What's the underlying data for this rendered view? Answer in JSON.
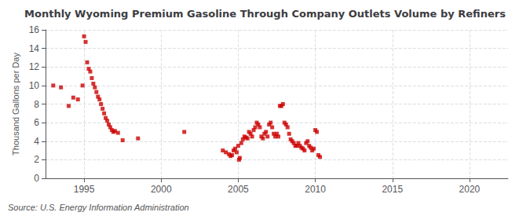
{
  "chart_data": {
    "type": "scatter",
    "title": "Monthly Wyoming Premium Gasoline Through Company Outlets Volume by Refiners",
    "ylabel": "Thousand Gallons per Day",
    "annotation": "Source: U.S. Energy Information Administration",
    "color": "#cc0000",
    "marker": "square",
    "grid": true,
    "xlim": [
      1992.5,
      2022.5
    ],
    "xticks": [
      1995,
      2000,
      2005,
      2010,
      2015,
      2020
    ],
    "ylim": [
      0,
      16
    ],
    "yticks": [
      0,
      2,
      4,
      6,
      8,
      10,
      12,
      14,
      16
    ],
    "x": [
      1993.0,
      1993.5,
      1994.0,
      1994.3,
      1994.6,
      1994.9,
      1995.0,
      1995.1,
      1995.2,
      1995.3,
      1995.4,
      1995.5,
      1995.6,
      1995.7,
      1995.8,
      1995.9,
      1996.0,
      1996.1,
      1996.2,
      1996.3,
      1996.4,
      1996.5,
      1996.6,
      1996.7,
      1996.8,
      1996.9,
      1997.0,
      1997.2,
      1997.5,
      1998.5,
      2001.5,
      2004.0,
      2004.2,
      2004.4,
      2004.5,
      2004.6,
      2004.7,
      2004.8,
      2004.9,
      2005.0,
      2005.05,
      2005.1,
      2005.2,
      2005.3,
      2005.4,
      2005.5,
      2005.6,
      2005.7,
      2005.8,
      2005.9,
      2006.0,
      2006.1,
      2006.2,
      2006.3,
      2006.4,
      2006.5,
      2006.6,
      2006.7,
      2006.8,
      2006.9,
      2007.0,
      2007.1,
      2007.2,
      2007.3,
      2007.4,
      2007.5,
      2007.6,
      2007.7,
      2007.8,
      2007.9,
      2008.0,
      2008.1,
      2008.2,
      2008.3,
      2008.4,
      2008.5,
      2008.6,
      2008.7,
      2008.8,
      2008.9,
      2009.0,
      2009.1,
      2009.2,
      2009.3,
      2009.4,
      2009.5,
      2009.6,
      2009.7,
      2009.8,
      2009.9,
      2010.0,
      2010.1,
      2010.2,
      2010.3
    ],
    "values": [
      10.0,
      9.8,
      7.8,
      8.7,
      8.5,
      10.0,
      15.3,
      14.7,
      12.5,
      11.8,
      11.5,
      10.8,
      10.2,
      9.8,
      9.3,
      8.8,
      8.5,
      8.0,
      7.5,
      7.0,
      6.5,
      6.2,
      5.8,
      5.5,
      5.2,
      5.0,
      5.1,
      4.9,
      4.1,
      4.3,
      5.0,
      3.0,
      2.8,
      2.6,
      2.4,
      2.5,
      3.0,
      3.2,
      2.8,
      3.5,
      2.0,
      2.2,
      3.8,
      4.2,
      4.5,
      4.4,
      4.3,
      5.0,
      4.8,
      4.5,
      5.2,
      5.5,
      6.0,
      5.8,
      5.5,
      4.5,
      4.3,
      4.8,
      5.0,
      4.5,
      5.8,
      6.0,
      5.5,
      4.8,
      4.5,
      4.8,
      4.5,
      7.8,
      7.8,
      8.0,
      6.0,
      5.8,
      5.5,
      4.8,
      4.2,
      4.0,
      3.8,
      3.5,
      3.5,
      3.8,
      3.5,
      3.3,
      3.2,
      3.0,
      3.8,
      4.0,
      3.5,
      3.3,
      3.0,
      3.2,
      5.2,
      5.0,
      2.5,
      2.3
    ]
  }
}
